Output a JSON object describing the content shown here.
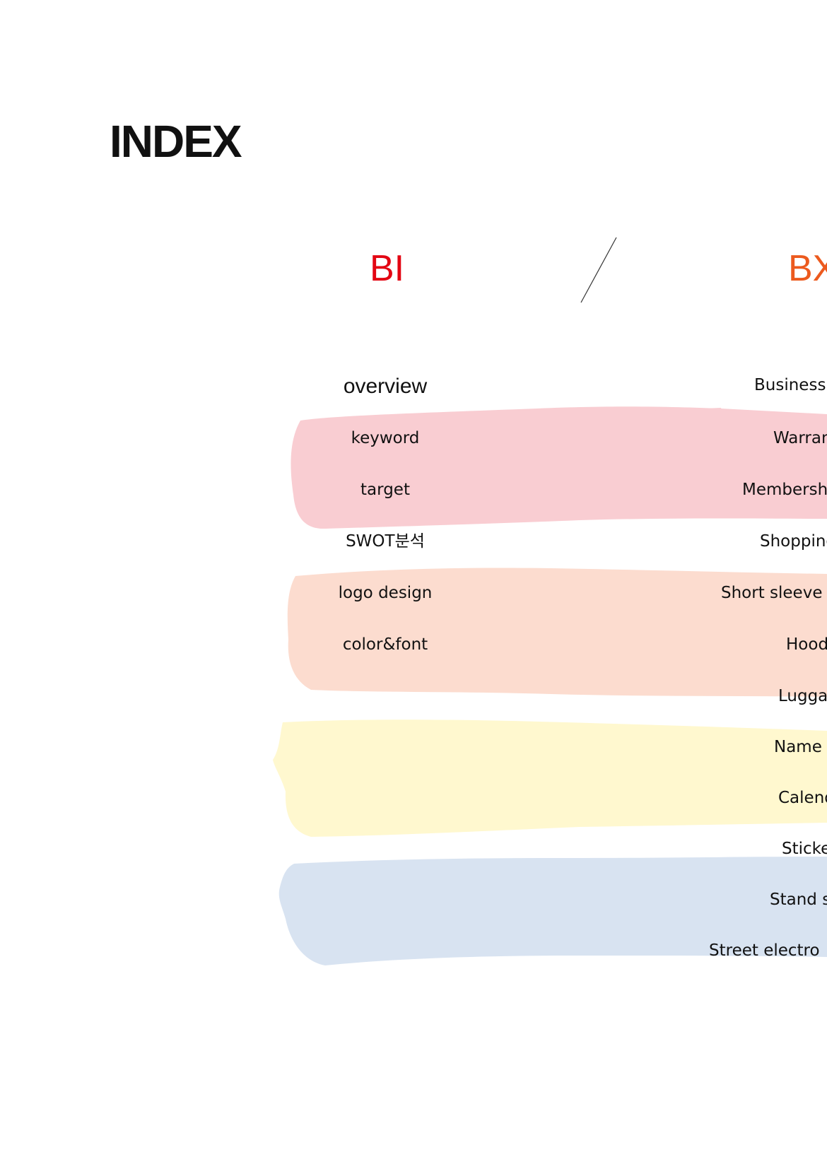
{
  "title": "INDEX",
  "headings": {
    "left": "BI",
    "right": "BX",
    "left_color": "#e30613",
    "right_color": "#ec5a1e"
  },
  "stroke_colors": [
    "#f9cdd2",
    "#fcdccf",
    "#fff8cf",
    "#d8e3f1"
  ],
  "bi_items": [
    "overview",
    "keyword",
    "target",
    "SWOT분석",
    "logo design",
    "color&font"
  ],
  "bx_items": [
    "Business",
    "Warran",
    "Membersh",
    "Shopping",
    "Short sleeve",
    "Hood",
    "Lugga",
    "Name t",
    "Calend",
    "Sticke",
    "Stand s",
    "Street electro"
  ]
}
